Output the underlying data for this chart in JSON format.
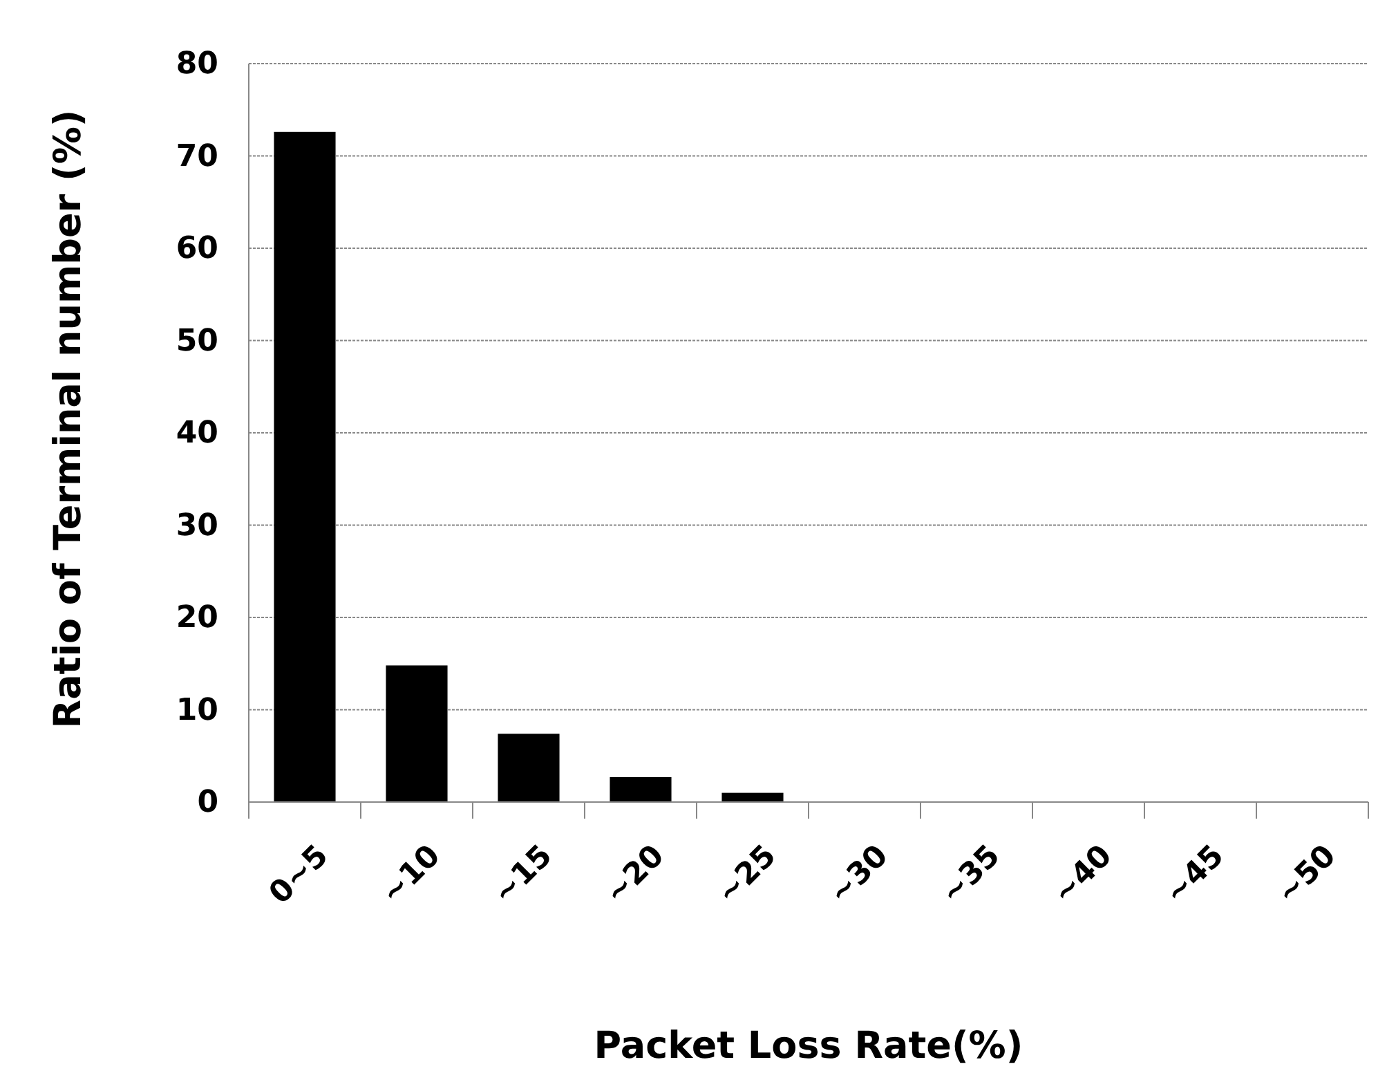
{
  "chart_data": {
    "type": "bar",
    "xlabel": "Packet Loss Rate(%)",
    "ylabel": "Ratio of Terminal number  (%)",
    "categories": [
      "0~5",
      "~10",
      "~15",
      "~20",
      "~25",
      "~30",
      "~35",
      "~40",
      "~45",
      "~50"
    ],
    "values": [
      72.6,
      14.8,
      7.4,
      2.7,
      1.0,
      0,
      0,
      0,
      0,
      0
    ],
    "color": "#000000",
    "ylim": [
      0,
      80
    ],
    "yticks": [
      0,
      10,
      20,
      30,
      40,
      50,
      60,
      70,
      80
    ],
    "grid": "y"
  }
}
